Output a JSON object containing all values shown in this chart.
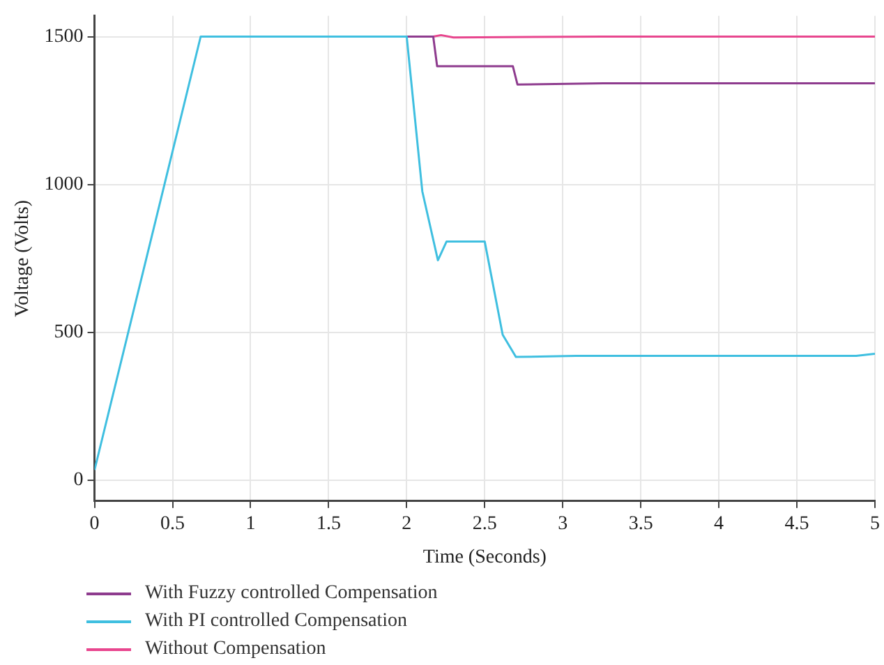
{
  "chart_data": {
    "type": "line",
    "xlabel": "Time (Seconds)",
    "ylabel": "Voltage (Volts)",
    "xlim": [
      0,
      5
    ],
    "ylim": [
      -70,
      1570
    ],
    "xticks": [
      0,
      0.5,
      1,
      1.5,
      2,
      2.5,
      3,
      3.5,
      4,
      4.5,
      5
    ],
    "yticks": [
      0,
      500,
      1000,
      1500
    ],
    "grid": true,
    "legend": "bottom left",
    "marker": "none",
    "line_style": "solid",
    "series": [
      {
        "name": "With Fuzzy controlled Compensation",
        "color": "#8e3b8e",
        "x": [
          2.0,
          2.17,
          2.195,
          2.68,
          2.71,
          3.26,
          5
        ],
        "values": [
          1500,
          1500,
          1400,
          1400,
          1338,
          1342,
          1342
        ]
      },
      {
        "name": "With PI controlled Compensation",
        "color": "#3fbfe0",
        "x": [
          0,
          0.68,
          2.0,
          2.1,
          2.2,
          2.255,
          2.5,
          2.615,
          2.7,
          3.085,
          4.88,
          5
        ],
        "values": [
          35,
          1500,
          1500,
          977,
          744,
          807,
          807,
          492,
          417,
          421,
          421,
          428
        ]
      },
      {
        "name": "Without Compensation",
        "color": "#e8468e",
        "x": [
          2.17,
          2.22,
          2.3,
          3.26,
          5
        ],
        "values": [
          1500,
          1505,
          1497,
          1500,
          1500
        ]
      }
    ]
  }
}
